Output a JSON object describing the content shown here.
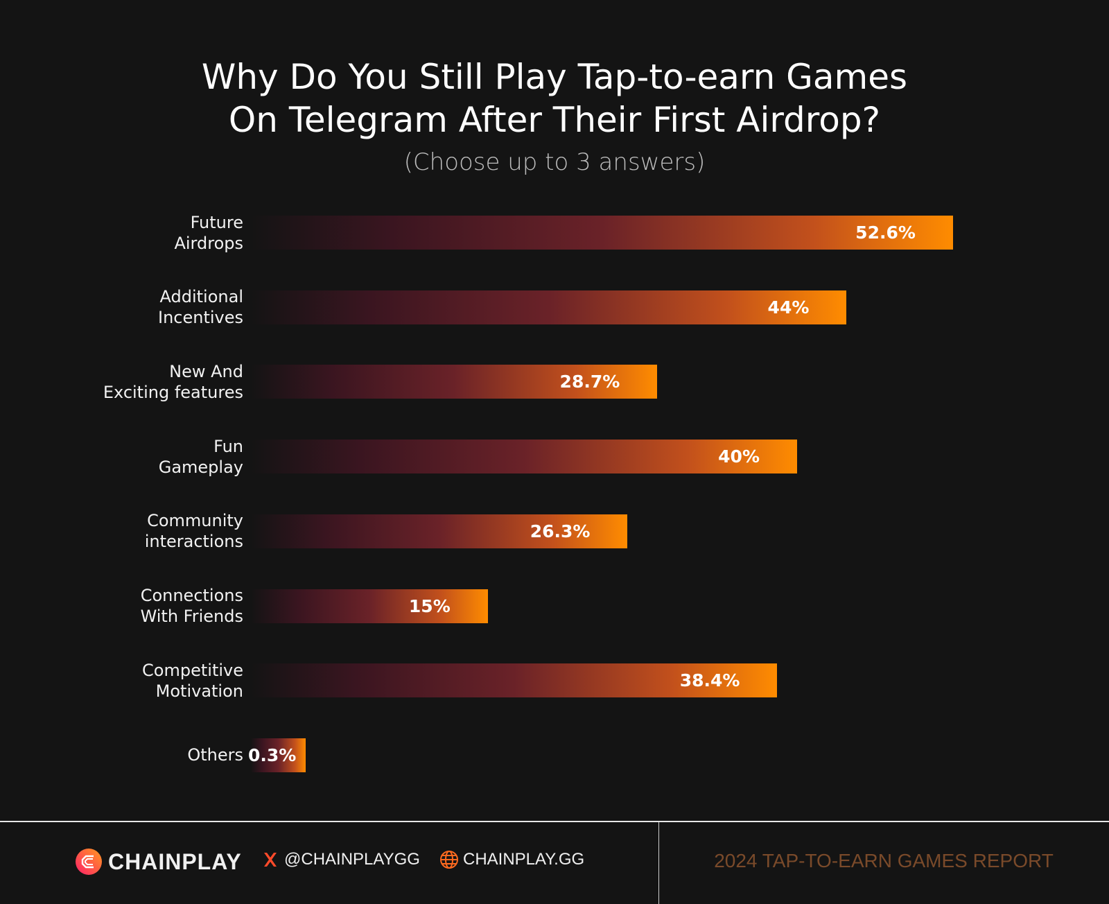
{
  "chart_data": {
    "type": "bar",
    "orientation": "horizontal",
    "title_line1": "Why Do You Still Play Tap-to-earn Games",
    "title_line2": "On Telegram After Their First Airdrop?",
    "subtitle": "(Choose up to 3 answers)",
    "categories": [
      [
        "Future",
        "Airdrops"
      ],
      [
        "Additional",
        "Incentives"
      ],
      [
        "New And",
        "Exciting features"
      ],
      [
        "Fun",
        "Gameplay"
      ],
      [
        "Community",
        "interactions"
      ],
      [
        "Connections",
        "With Friends"
      ],
      [
        "Competitive",
        "Motivation"
      ],
      [
        "Others"
      ]
    ],
    "values": [
      52.6,
      44,
      28.7,
      40,
      26.3,
      15,
      38.4,
      0.3
    ],
    "value_labels": [
      "52.6%",
      "44%",
      "28.7%",
      "40%",
      "26.3%",
      "15%",
      "38.4%",
      "0.3%"
    ],
    "unit": "%",
    "grid": false,
    "colors": {
      "start": "#141414",
      "mid": "#6a2228",
      "end": "#ff8c00"
    }
  },
  "footer": {
    "brand": "CHAINPLAY",
    "twitter": "@CHAINPLAYGG",
    "website": "CHAINPLAY.GG",
    "report": "2024 TAP-TO-EARN GAMES REPORT"
  }
}
